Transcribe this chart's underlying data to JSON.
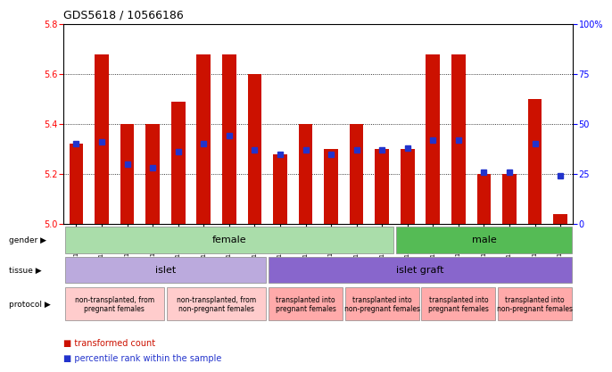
{
  "title": "GDS5618 / 10566186",
  "samples": [
    "GSM1429382",
    "GSM1429383",
    "GSM1429384",
    "GSM1429385",
    "GSM1429386",
    "GSM1429387",
    "GSM1429388",
    "GSM1429389",
    "GSM1429390",
    "GSM1429391",
    "GSM1429392",
    "GSM1429396",
    "GSM1429397",
    "GSM1429398",
    "GSM1429393",
    "GSM1429394",
    "GSM1429395",
    "GSM1429399",
    "GSM1429400",
    "GSM1429401"
  ],
  "red_values": [
    5.32,
    5.68,
    5.4,
    5.4,
    5.49,
    5.68,
    5.68,
    5.6,
    5.28,
    5.4,
    5.3,
    5.4,
    5.3,
    5.3,
    5.68,
    5.68,
    5.2,
    5.2,
    5.5,
    5.04
  ],
  "blue_pct": [
    40,
    41,
    30,
    28,
    36,
    40,
    44,
    37,
    35,
    37,
    35,
    37,
    37,
    38,
    42,
    42,
    26,
    26,
    40,
    24
  ],
  "ylim_left": [
    5.0,
    5.8
  ],
  "ylim_right": [
    0,
    100
  ],
  "yticks_left": [
    5.0,
    5.2,
    5.4,
    5.6,
    5.8
  ],
  "yticks_right": [
    0,
    25,
    50,
    75,
    100
  ],
  "bar_color": "#CC1100",
  "dot_color": "#2233CC",
  "bar_bottom": 5.0,
  "bg_color": "#F0F0F0",
  "gender_regions": [
    {
      "label": "female",
      "start": 0,
      "end": 13,
      "color": "#AADDAA"
    },
    {
      "label": "male",
      "start": 13,
      "end": 20,
      "color": "#55BB55"
    }
  ],
  "tissue_regions": [
    {
      "label": "islet",
      "start": 0,
      "end": 8,
      "color": "#BBAADD"
    },
    {
      "label": "islet graft",
      "start": 8,
      "end": 20,
      "color": "#8866CC"
    }
  ],
  "protocol_regions": [
    {
      "label": "non-transplanted, from\npregnant females",
      "start": 0,
      "end": 4,
      "color": "#FFCCCC"
    },
    {
      "label": "non-transplanted, from\nnon-pregnant females",
      "start": 4,
      "end": 8,
      "color": "#FFCCCC"
    },
    {
      "label": "transplanted into\npregnant females",
      "start": 8,
      "end": 11,
      "color": "#FFAAAA"
    },
    {
      "label": "transplanted into\nnon-pregnant females",
      "start": 11,
      "end": 14,
      "color": "#FFAAAA"
    },
    {
      "label": "transplanted into\npregnant females",
      "start": 14,
      "end": 17,
      "color": "#FFAAAA"
    },
    {
      "label": "transplanted into\nnon-pregnant females",
      "start": 17,
      "end": 20,
      "color": "#FFAAAA"
    }
  ]
}
